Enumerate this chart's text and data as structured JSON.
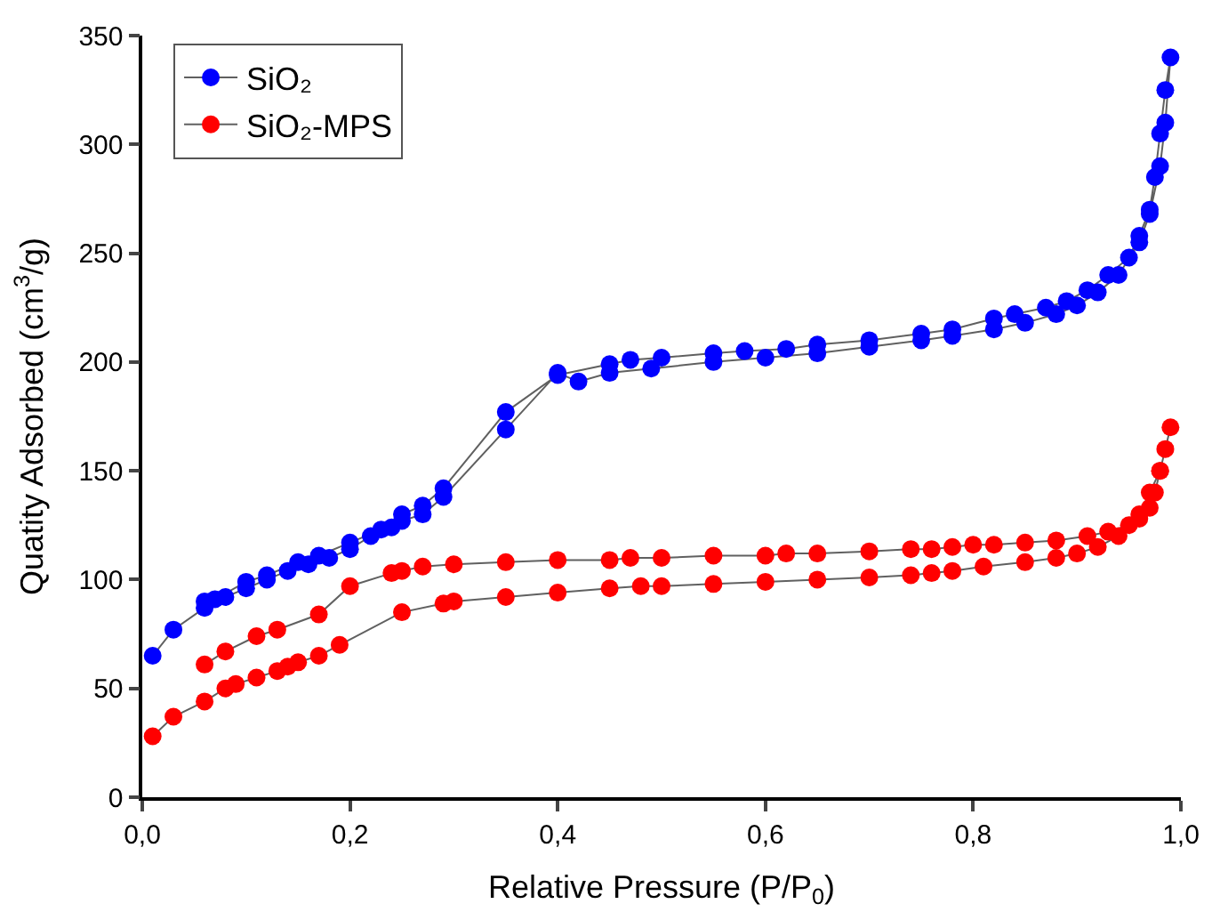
{
  "chart_data": {
    "type": "line",
    "xlabel": "Relative Pressure (P/P$_{0}$)",
    "ylabel": "Quatity Adsorbed (cm$^{3}$/g)",
    "xlim": [
      0,
      1.0
    ],
    "ylim": [
      0,
      350
    ],
    "xticks": [
      {
        "value": 0,
        "label": "0,0"
      },
      {
        "value": 0.2,
        "label": "0,2"
      },
      {
        "value": 0.4,
        "label": "0,4"
      },
      {
        "value": 0.6,
        "label": "0,6"
      },
      {
        "value": 0.8,
        "label": "0,8"
      },
      {
        "value": 1.0,
        "label": "1,0"
      }
    ],
    "yticks": [
      0,
      50,
      100,
      150,
      200,
      250,
      300,
      350
    ],
    "marker": "circle",
    "legend": "top left",
    "series": [
      {
        "name": "SiO₂",
        "color": "#0000ff",
        "x": [
          0.01,
          0.03,
          0.06,
          0.08,
          0.1,
          0.12,
          0.14,
          0.16,
          0.18,
          0.2,
          0.22,
          0.24,
          0.25,
          0.27,
          0.29,
          0.35,
          0.4,
          0.42,
          0.45,
          0.49,
          0.55,
          0.6,
          0.65,
          0.7,
          0.75,
          0.78,
          0.82,
          0.85,
          0.88,
          0.9,
          0.92,
          0.94,
          0.96,
          0.97,
          0.98,
          0.985,
          0.99,
          0.985,
          0.98,
          0.975,
          0.97,
          0.96,
          0.95,
          0.93,
          0.91,
          0.89,
          0.87,
          0.84,
          0.82,
          0.78,
          0.75,
          0.7,
          0.65,
          0.62,
          0.58,
          0.55,
          0.5,
          0.47,
          0.45,
          0.4,
          0.35,
          0.29,
          0.27,
          0.25,
          0.23,
          0.2,
          0.17,
          0.15,
          0.12,
          0.1,
          0.07,
          0.06
        ],
        "values": [
          65,
          77,
          87,
          92,
          96,
          100,
          104,
          107,
          110,
          114,
          120,
          124,
          127,
          130,
          138,
          169,
          195,
          191,
          195,
          197,
          200,
          202,
          204,
          207,
          210,
          212,
          215,
          218,
          222,
          226,
          232,
          240,
          255,
          268,
          290,
          310,
          340,
          325,
          305,
          285,
          270,
          258,
          248,
          240,
          233,
          228,
          225,
          222,
          220,
          215,
          213,
          210,
          208,
          206,
          205,
          204,
          202,
          201,
          199,
          194,
          177,
          142,
          134,
          130,
          123,
          117,
          111,
          108,
          102,
          99,
          91,
          90
        ]
      },
      {
        "name": "SiO₂-MPS",
        "color": "#ff0000",
        "x": [
          0.01,
          0.03,
          0.06,
          0.08,
          0.09,
          0.11,
          0.13,
          0.14,
          0.15,
          0.17,
          0.19,
          0.25,
          0.29,
          0.3,
          0.35,
          0.4,
          0.45,
          0.48,
          0.5,
          0.55,
          0.6,
          0.65,
          0.7,
          0.74,
          0.76,
          0.78,
          0.81,
          0.85,
          0.88,
          0.9,
          0.92,
          0.94,
          0.96,
          0.97,
          0.98,
          0.99,
          0.985,
          0.98,
          0.975,
          0.97,
          0.96,
          0.95,
          0.93,
          0.91,
          0.88,
          0.85,
          0.82,
          0.8,
          0.78,
          0.76,
          0.74,
          0.7,
          0.65,
          0.62,
          0.6,
          0.55,
          0.5,
          0.47,
          0.45,
          0.4,
          0.35,
          0.3,
          0.27,
          0.25,
          0.24,
          0.2,
          0.17,
          0.13,
          0.11,
          0.08,
          0.06
        ],
        "values": [
          28,
          37,
          44,
          50,
          52,
          55,
          58,
          60,
          62,
          65,
          70,
          85,
          89,
          90,
          92,
          94,
          96,
          97,
          97,
          98,
          99,
          100,
          101,
          102,
          103,
          104,
          106,
          108,
          110,
          112,
          115,
          120,
          130,
          140,
          150,
          170,
          160,
          150,
          140,
          133,
          128,
          125,
          122,
          120,
          118,
          117,
          116,
          116,
          115,
          114,
          114,
          113,
          112,
          112,
          111,
          111,
          110,
          110,
          109,
          109,
          108,
          107,
          106,
          104,
          103,
          97,
          84,
          77,
          74,
          67,
          61
        ]
      }
    ]
  }
}
